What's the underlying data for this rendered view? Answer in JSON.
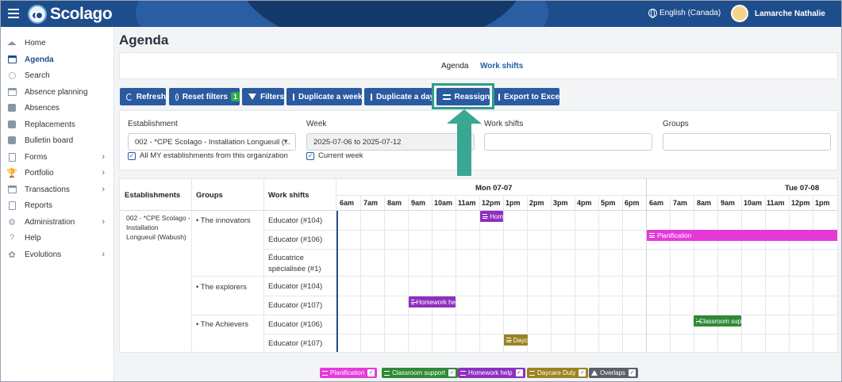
{
  "header": {
    "logo_text": "Scolago",
    "language": "English (Canada)",
    "user_name": "Lamarche Nathalie"
  },
  "sidebar": {
    "items": [
      {
        "label": "Home",
        "icon": "home-icon"
      },
      {
        "label": "Agenda",
        "icon": "calendar-icon",
        "active": true
      },
      {
        "label": "Search",
        "icon": "search-icon"
      },
      {
        "label": "Absence planning",
        "icon": "calendar-icon"
      },
      {
        "label": "Absences",
        "icon": "users-icon"
      },
      {
        "label": "Replacements",
        "icon": "swap-icon"
      },
      {
        "label": "Bulletin board",
        "icon": "board-icon"
      },
      {
        "label": "Forms",
        "icon": "form-icon",
        "expandable": true
      },
      {
        "label": "Portfolio",
        "icon": "trophy-icon",
        "expandable": true
      },
      {
        "label": "Transactions",
        "icon": "card-icon",
        "expandable": true
      },
      {
        "label": "Reports",
        "icon": "report-icon"
      },
      {
        "label": "Administration",
        "icon": "gear-icon",
        "expandable": true
      },
      {
        "label": "Help",
        "icon": "help-icon"
      },
      {
        "label": "Evolutions",
        "icon": "sprout-icon",
        "expandable": true
      }
    ]
  },
  "page": {
    "title": "Agenda",
    "view_tabs": {
      "agenda": "Agenda",
      "work_shifts": "Work shifts"
    }
  },
  "toolbar": {
    "refresh": "Refresh",
    "reset_filters": "Reset filters",
    "reset_filters_count": "1",
    "filters": "Filters",
    "duplicate_week": "Duplicate a week",
    "duplicate_day": "Duplicate a day",
    "reassign": "Reassign",
    "export_excel": "Export to Excel"
  },
  "filters": {
    "establishment_label": "Establishment",
    "establishment_value": "002 - *CPE Scolago - Installation Longueuil (...",
    "all_establishments_label": "All MY establishments from this organization",
    "week_label": "Week",
    "week_value": "2025-07-06 to 2025-07-12",
    "current_week_label": "Current week",
    "work_shifts_label": "Work shifts",
    "groups_label": "Groups"
  },
  "grid": {
    "headers": {
      "establishments": "Establishments",
      "groups": "Groups",
      "work_shifts": "Work shifts"
    },
    "days": [
      "Mon 07-07",
      "Tue 07-08"
    ],
    "hours_day1": [
      "6am",
      "7am",
      "8am",
      "9am",
      "10am",
      "11am",
      "12pm",
      "1pm",
      "2pm",
      "3pm",
      "4pm",
      "5pm",
      "6pm"
    ],
    "hours_day2": [
      "6am",
      "7am",
      "8am",
      "9am",
      "10am",
      "11am",
      "12pm",
      "1pm"
    ],
    "establishment": "002 - *CPE Scolago - Installation Longueuil (Wabush)",
    "establishment_lines": [
      "002 - *CPE Scolago -",
      "Installation",
      "Longueuil (Wabush)"
    ],
    "groups": [
      "The innovators",
      "The explorers",
      "The Achievers"
    ],
    "rows": [
      {
        "shift": "Educator (#104)"
      },
      {
        "shift": "Educator (#106)"
      },
      {
        "shift_lines": [
          "Éducatrice",
          "spécialisée (#1)"
        ]
      },
      {
        "shift": "Educator (#104)"
      },
      {
        "shift": "Educator (#107)"
      },
      {
        "shift": "Educator (#106)"
      },
      {
        "shift": "Educator (#107)"
      }
    ],
    "events": [
      {
        "label": "Hom",
        "color": "#8e2fc0"
      },
      {
        "label": "Planification",
        "color": "#e53ad8"
      },
      {
        "label": "Homework he",
        "color": "#8e2fc0"
      },
      {
        "label": "Classroom sup",
        "color": "#2f8a35"
      },
      {
        "label": "Dayc",
        "color": "#9a8422"
      }
    ]
  },
  "legend": [
    {
      "label": "Planification",
      "color": "#e53ad8"
    },
    {
      "label": "Classroom support",
      "color": "#2f8a35"
    },
    {
      "label": "Homework help",
      "color": "#8e2fc0"
    },
    {
      "label": "Daycare Duty",
      "color": "#9a8422"
    },
    {
      "label": "Overlaps",
      "color": "#5a6068"
    }
  ]
}
